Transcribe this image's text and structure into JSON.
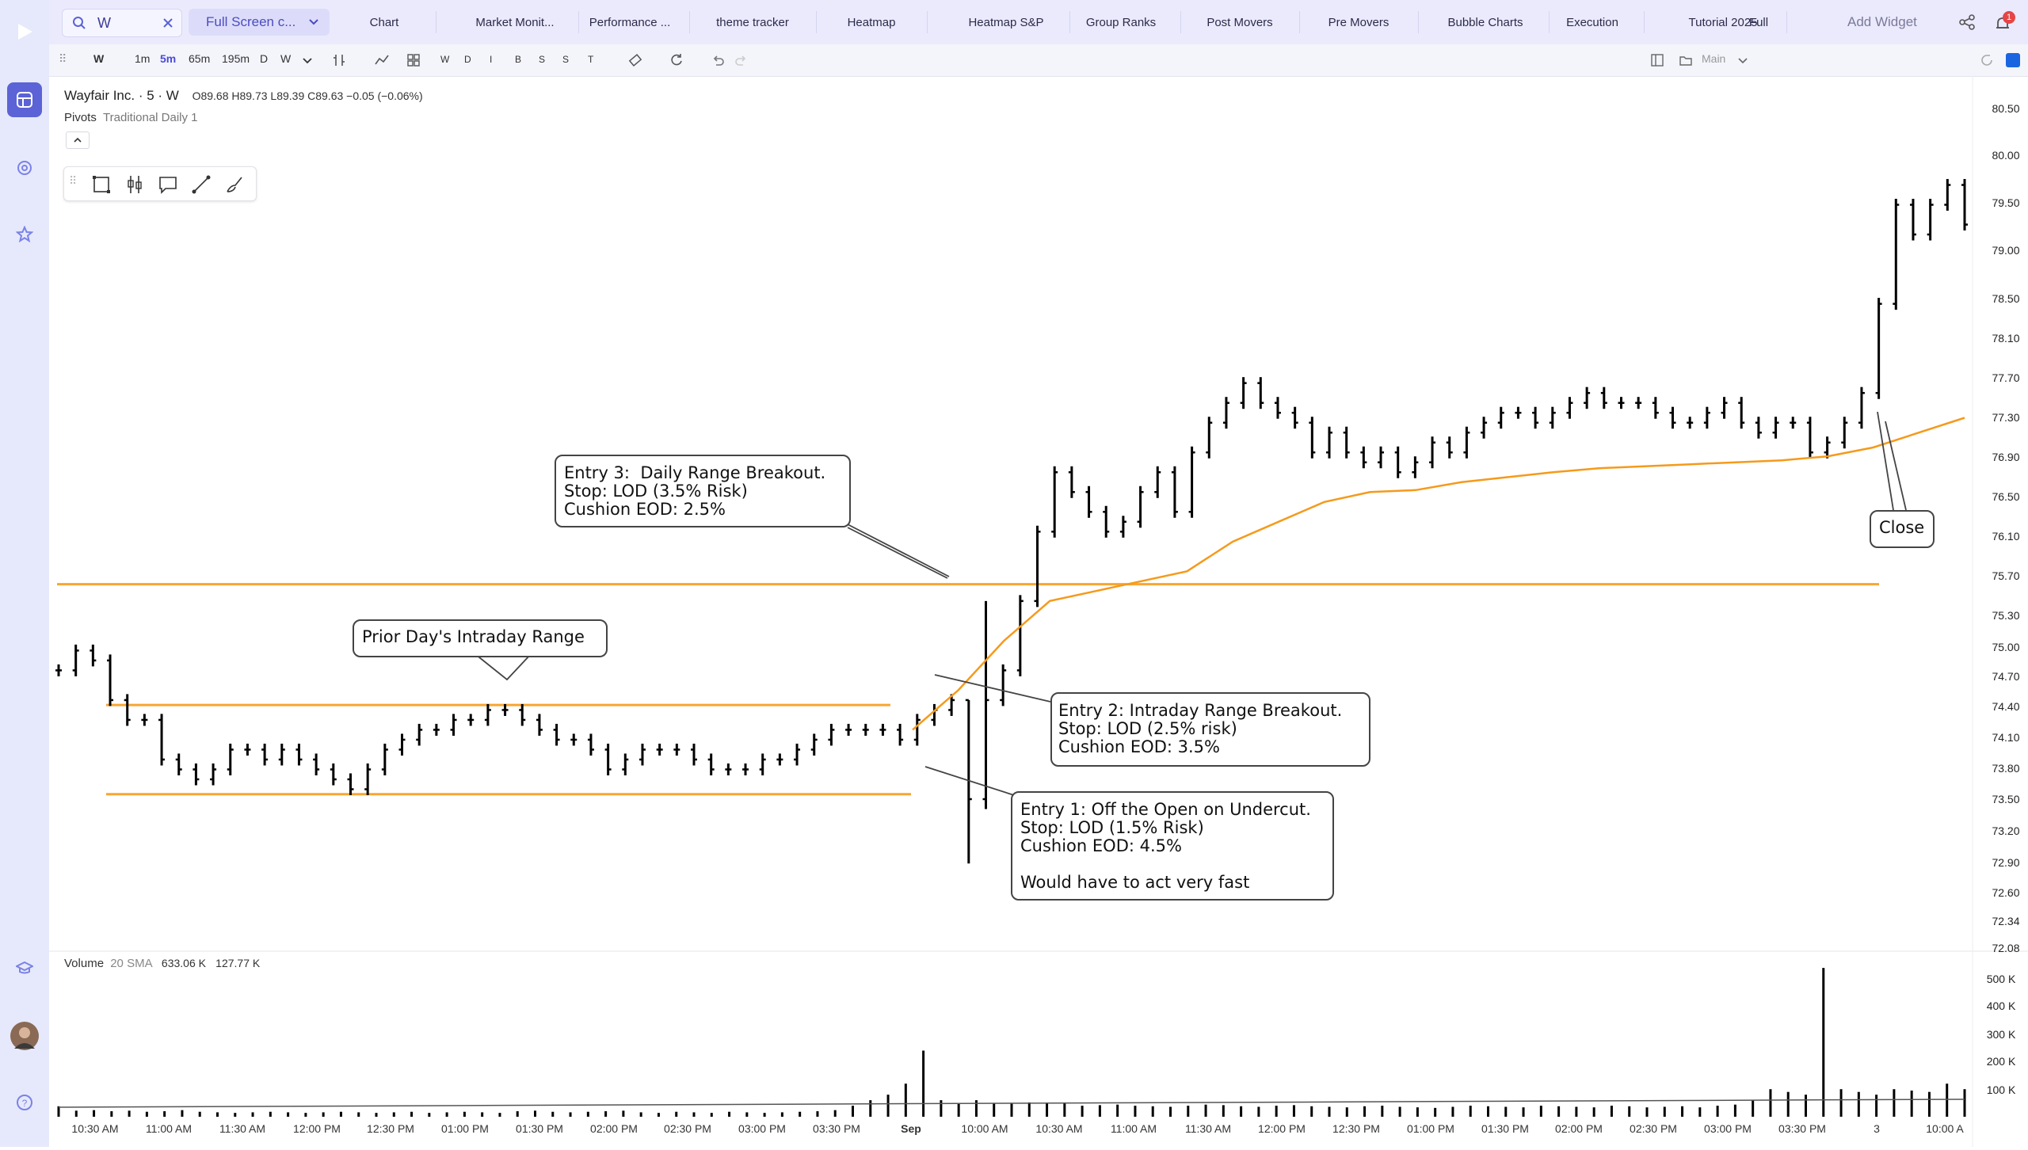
{
  "topbar": {
    "search_value": "W",
    "layout_label": "Full Screen c...",
    "tabs": [
      {
        "label": "Chart"
      },
      {
        "label": "Market Monit..."
      },
      {
        "label": "Performance ..."
      },
      {
        "label": "theme tracker"
      },
      {
        "label": "Heatmap"
      },
      {
        "label": "Heatmap S&P"
      },
      {
        "label": "Group Ranks"
      },
      {
        "label": "Post Movers"
      },
      {
        "label": "Pre Movers"
      },
      {
        "label": "Bubble Charts"
      },
      {
        "label": "Execution"
      },
      {
        "label": "Tutorial 2025"
      },
      {
        "label": "Full"
      }
    ],
    "add_widget_label": "Add Widget",
    "notification_count": "1"
  },
  "toolbar": {
    "symbol": "W",
    "intervals": [
      "1m",
      "5m",
      "65m",
      "195m",
      "D",
      "W"
    ],
    "selected_interval": "5m",
    "toggles": [
      "W",
      "D",
      "I",
      "B",
      "S",
      "S",
      "T"
    ],
    "layout_name": "Main"
  },
  "legend": {
    "title": "Wayfair Inc. · 5 · W",
    "ohlc": "O89.68  H89.73  L89.39  C89.63  −0.05 (−0.06%)",
    "pivots_label": "Pivots",
    "pivots_value": "Traditional Daily 1",
    "volume_label": "Volume",
    "volume_sma": "20 SMA",
    "volume_v1": "633.06 K",
    "volume_v2": "127.77 K"
  },
  "annotations": {
    "prior_range": "Prior Day's Intraday Range",
    "entry3": "Entry 3:  Daily Range Breakout.\nStop: LOD (3.5% Risk)\nCushion EOD: 2.5%",
    "entry2": "Entry 2: Intraday Range Breakout.\nStop: LOD (2.5% risk)\nCushion EOD: 3.5%",
    "entry1": "Entry 1: Off the Open on Undercut.\nStop: LOD (1.5% Risk)\nCushion EOD: 4.5%\n\nWould have to act very fast",
    "close": "Close"
  },
  "colors": {
    "accent": "#5b63d6",
    "range_line": "#f7a531",
    "ma_line": "#f59a1b",
    "bars": "#000000"
  },
  "chart_data": {
    "type": "ohlc",
    "symbol": "W",
    "interval": "5m",
    "price_axis_ticks": [
      "80.50",
      "80.00",
      "79.50",
      "79.00",
      "78.50",
      "78.10",
      "77.70",
      "77.30",
      "76.90",
      "76.50",
      "76.10",
      "75.70",
      "75.30",
      "75.00",
      "74.70",
      "74.40",
      "74.10",
      "73.80",
      "73.50",
      "73.20",
      "72.90",
      "72.60",
      "72.34",
      "72.08"
    ],
    "volume_axis_ticks": [
      "500 K",
      "400 K",
      "300 K",
      "200 K",
      "100 K"
    ],
    "time_axis_ticks": [
      "10:30 AM",
      "11:00 AM",
      "11:30 AM",
      "12:00 PM",
      "12:30 PM",
      "01:00 PM",
      "01:30 PM",
      "02:00 PM",
      "02:30 PM",
      "03:00 PM",
      "03:30 PM",
      "Sep",
      "10:00 AM",
      "10:30 AM",
      "11:00 AM",
      "11:30 AM",
      "12:00 PM",
      "12:30 PM",
      "01:00 PM",
      "01:30 PM",
      "02:00 PM",
      "02:30 PM",
      "03:00 PM",
      "03:30 PM",
      "3",
      "10:00 A"
    ],
    "prior_day_range": {
      "high": 74.45,
      "low": 73.55
    },
    "daily_range_high": 75.67,
    "price_path": [
      74.8,
      75.0,
      74.9,
      74.5,
      74.3,
      74.3,
      73.9,
      73.8,
      73.7,
      73.8,
      74.0,
      74.0,
      73.9,
      74.0,
      73.9,
      73.8,
      73.7,
      73.6,
      73.8,
      74.0,
      74.1,
      74.2,
      74.2,
      74.3,
      74.3,
      74.4,
      74.4,
      74.3,
      74.2,
      74.1,
      74.1,
      74.0,
      73.8,
      73.9,
      74.0,
      74.0,
      74.0,
      73.9,
      73.8,
      73.8,
      73.8,
      73.9,
      73.9,
      74.0,
      74.1,
      74.2,
      74.2,
      74.2,
      74.2,
      74.1,
      74.3,
      74.4,
      74.5,
      73.5,
      74.5,
      74.8,
      75.5,
      76.2,
      76.8,
      76.6,
      76.4,
      76.2,
      76.3,
      76.6,
      76.8,
      76.4,
      77.0,
      77.3,
      77.5,
      77.7,
      77.5,
      77.4,
      77.3,
      77.0,
      77.2,
      77.0,
      76.9,
      77.0,
      76.8,
      76.9,
      77.1,
      77.0,
      77.2,
      77.3,
      77.4,
      77.4,
      77.3,
      77.4,
      77.5,
      77.6,
      77.5,
      77.5,
      77.5,
      77.4,
      77.3,
      77.3,
      77.4,
      77.5,
      77.3,
      77.2,
      77.3,
      77.3,
      77.0,
      77.1,
      77.3,
      77.6,
      78.5,
      79.5,
      79.2,
      79.5,
      79.7,
      79.3
    ],
    "ma_path": [
      74.2,
      74.6,
      75.1,
      75.5,
      75.6,
      75.7,
      75.8,
      76.1,
      76.3,
      76.5,
      76.6,
      76.62,
      76.7,
      76.75,
      76.8,
      76.84,
      76.86,
      76.88,
      76.9,
      76.92,
      76.96,
      77.05,
      77.2,
      77.35
    ],
    "volume_bars_k": [
      38,
      22,
      24,
      20,
      22,
      18,
      20,
      24,
      18,
      16,
      14,
      16,
      18,
      16,
      14,
      16,
      18,
      16,
      14,
      16,
      18,
      14,
      16,
      18,
      16,
      14,
      20,
      22,
      18,
      16,
      18,
      20,
      22,
      16,
      14,
      18,
      16,
      14,
      18,
      16,
      14,
      16,
      18,
      20,
      24,
      40,
      60,
      80,
      120,
      240,
      60,
      50,
      60,
      50,
      48,
      52,
      50,
      48,
      40,
      42,
      44,
      40,
      38,
      36,
      40,
      44,
      42,
      38,
      36,
      40,
      42,
      38,
      36,
      34,
      38,
      40,
      36,
      34,
      32,
      36,
      40,
      38,
      36,
      34,
      40,
      38,
      36,
      34,
      40,
      38,
      34,
      36,
      38,
      34,
      40,
      44,
      60,
      100,
      90,
      80,
      540,
      100,
      90,
      80,
      100,
      95,
      90,
      120,
      100
    ],
    "annotations": [
      {
        "label": "Prior Day's Intraday Range"
      },
      {
        "label": "Entry 1: Off the Open on Undercut."
      },
      {
        "label": "Entry 2: Intraday Range Breakout."
      },
      {
        "label": "Entry 3:  Daily Range Breakout."
      },
      {
        "label": "Close"
      }
    ]
  }
}
